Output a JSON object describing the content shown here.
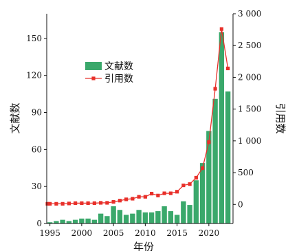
{
  "chart_data": {
    "type": "bar",
    "xlabel": "年份",
    "ylabel": "文献数",
    "y2label": "引用数",
    "ylim": [
      0,
      170
    ],
    "y2lim": [
      -300,
      3000
    ],
    "xlim": [
      1994.5,
      2023.8
    ],
    "x_ticks": [
      "1995",
      "2000",
      "2005",
      "2010",
      "2015",
      "2020"
    ],
    "y_ticks": [
      "0",
      "30",
      "60",
      "90",
      "120",
      "150"
    ],
    "y2_ticks": [
      "0",
      "500",
      "1 000",
      "1 500",
      "2 000",
      "2 500",
      "3 000"
    ],
    "legend_position": "upper-left-center",
    "grid": false,
    "x": [
      1994,
      1995,
      1996,
      1997,
      1998,
      1999,
      2000,
      2001,
      2002,
      2003,
      2004,
      2005,
      2006,
      2007,
      2008,
      2009,
      2010,
      2011,
      2012,
      2013,
      2014,
      2015,
      2016,
      2017,
      2018,
      2019,
      2020,
      2021,
      2022,
      2023
    ],
    "series": [
      {
        "name": "文献数",
        "kind": "bar",
        "axis": "left",
        "color": "#3aa86b",
        "values": [
          2,
          1,
          2,
          3,
          2,
          3,
          4,
          4,
          3,
          8,
          6,
          14,
          11,
          7,
          8,
          11,
          9,
          9,
          10,
          14,
          10,
          7,
          18,
          15,
          35,
          49,
          75,
          101,
          155,
          107
        ]
      },
      {
        "name": "引用数",
        "kind": "line",
        "axis": "right",
        "color": "#e8302a",
        "values": [
          10,
          10,
          10,
          10,
          15,
          20,
          20,
          20,
          20,
          25,
          25,
          40,
          60,
          80,
          90,
          120,
          120,
          170,
          140,
          175,
          175,
          200,
          300,
          320,
          420,
          570,
          980,
          1820,
          2760,
          2140
        ]
      }
    ]
  }
}
